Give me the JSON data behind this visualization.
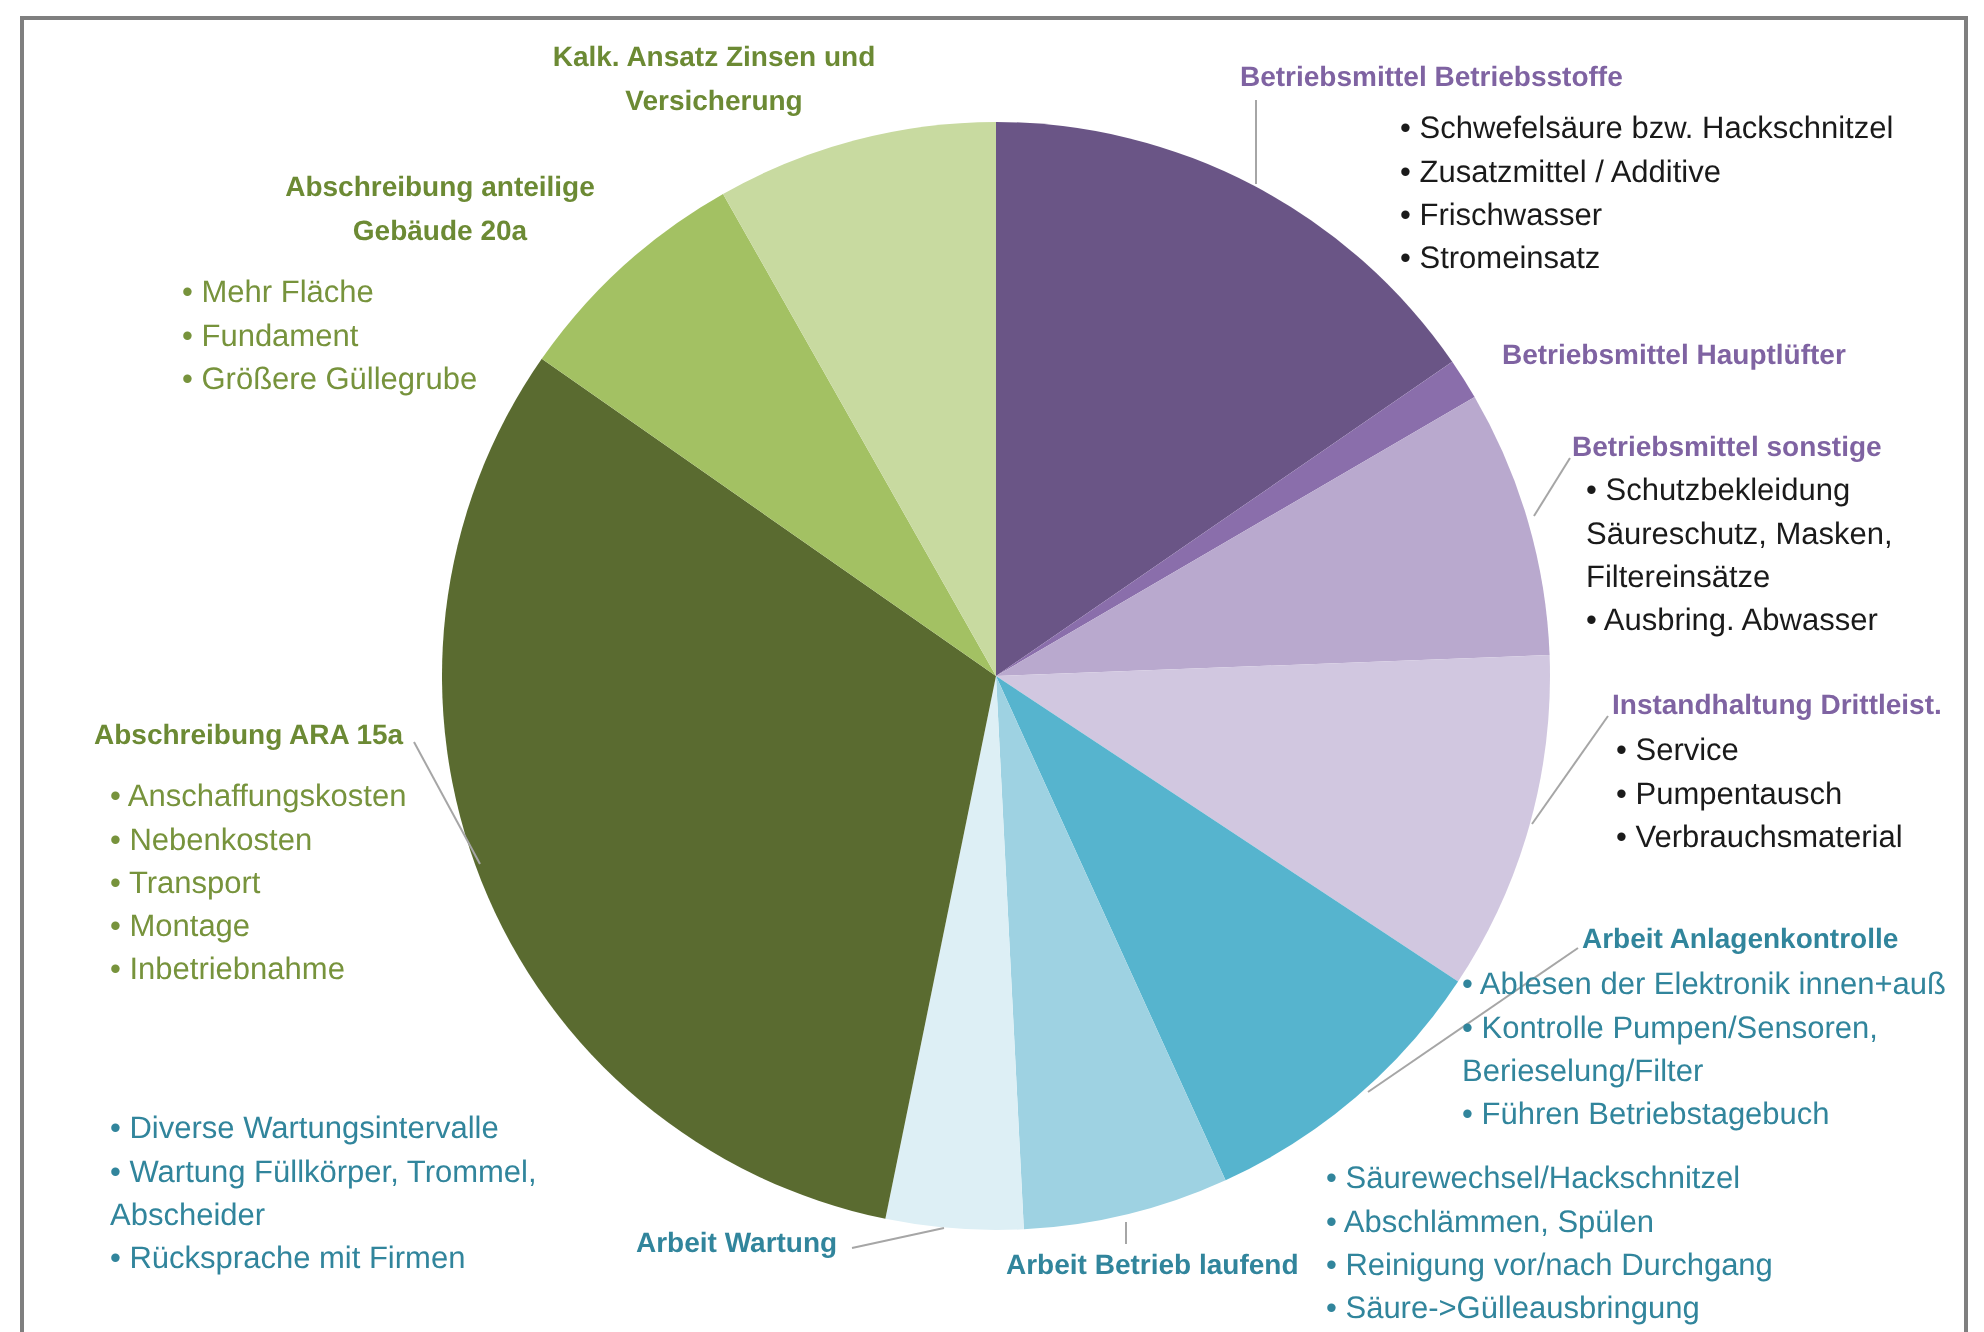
{
  "chart_data": {
    "type": "pie",
    "categories": [
      "Betriebsmittel Betriebsstoffe",
      "Betriebsmittel Hauptlüfter",
      "Betriebsmittel sonstige",
      "Instandhaltung Drittleist.",
      "Arbeit Anlagenkontrolle",
      "Arbeit Betrieb laufend",
      "Arbeit Wartung",
      "Abschreibung ARA 15a",
      "Abschreibung anteilige Gebäude 20a",
      "Kalk. Ansatz Zinsen und Versicherung"
    ],
    "values": [
      15.4,
      1.2,
      7.8,
      9.9,
      8.9,
      6.0,
      4.0,
      31.5,
      7.1,
      8.2
    ],
    "colors": [
      "#6a5586",
      "#8a6eab",
      "#b9a9ce",
      "#d1c7e0",
      "#56b4ce",
      "#9ed2e2",
      "#ddeff5",
      "#5a6b30",
      "#a3c163",
      "#c8daa0"
    ],
    "annotations": [
      "• Schwefelsäure bzw. Hackschnitzel",
      "• Zusatzmittel / Additive",
      "• Frischwasser",
      "• Stromeinsatz",
      "• Schutzbekleidung Säureschutz, Masken, Filtereinsätze",
      "• Ausbring. Abwasser",
      "• Service",
      "• Pumpentausch",
      "• Verbrauchsmaterial",
      "• Ablesen der Elektronik innen+auß",
      "• Kontrolle Pumpen/Sensoren, Berieselung/Filter",
      "• Führen Betriebstagebuch",
      "• Säurewechsel/Hackschnitzel",
      "• Abschlämmen, Spülen",
      "• Reinigung vor/nach Durchgang",
      "• Säure->Gülleausbringung",
      "• Diverse Wartungsintervalle",
      "• Wartung Füllkörper, Trommel, Abscheider",
      "• Rücksprache mit Firmen",
      "• Anschaffungskosten",
      "• Nebenkosten",
      "• Transport",
      "• Montage",
      "• Inbetriebnahme",
      "• Mehr Fläche",
      "• Fundament",
      "• Größere Güllegrube"
    ]
  }
}
